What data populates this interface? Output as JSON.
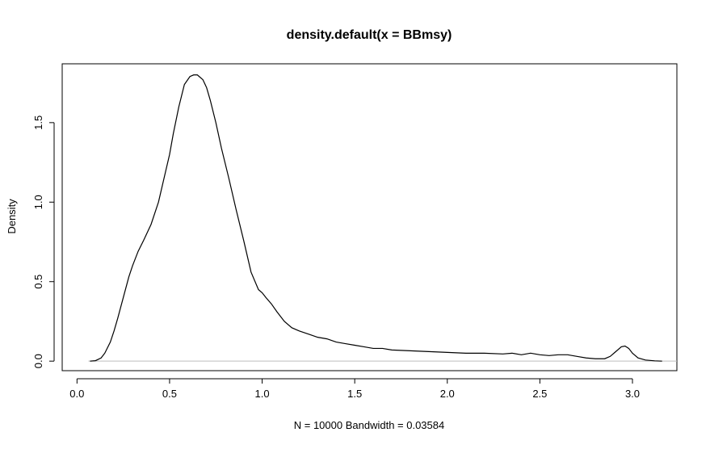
{
  "chart_data": {
    "type": "line",
    "title": "density.default(x = BBmsy)",
    "xlabel": "N = 10000   Bandwidth = 0.03584",
    "ylabel": "Density",
    "xlim": [
      -0.08,
      3.24
    ],
    "ylim": [
      -0.06,
      1.87
    ],
    "x_ticks": [
      0.0,
      0.5,
      1.0,
      1.5,
      2.0,
      2.5,
      3.0
    ],
    "x_tick_labels": [
      "0.0",
      "0.5",
      "1.0",
      "1.5",
      "2.0",
      "2.5",
      "3.0"
    ],
    "y_ticks": [
      0.0,
      0.5,
      1.0,
      1.5
    ],
    "y_tick_labels": [
      "0.0",
      "0.5",
      "1.0",
      "1.5"
    ],
    "zero_baseline": true,
    "zero_baseline_color": "#bebebe",
    "series": [
      {
        "color": "#000000",
        "x": [
          0.07,
          0.1,
          0.13,
          0.15,
          0.18,
          0.2,
          0.22,
          0.25,
          0.28,
          0.3,
          0.33,
          0.36,
          0.4,
          0.44,
          0.48,
          0.5,
          0.52,
          0.55,
          0.58,
          0.61,
          0.63,
          0.65,
          0.66,
          0.68,
          0.7,
          0.72,
          0.75,
          0.78,
          0.82,
          0.86,
          0.9,
          0.94,
          0.98,
          1.0,
          1.02,
          1.05,
          1.08,
          1.12,
          1.16,
          1.2,
          1.25,
          1.3,
          1.35,
          1.4,
          1.45,
          1.5,
          1.55,
          1.6,
          1.65,
          1.7,
          1.8,
          1.9,
          2.0,
          2.1,
          2.2,
          2.3,
          2.35,
          2.4,
          2.45,
          2.5,
          2.55,
          2.6,
          2.65,
          2.7,
          2.75,
          2.8,
          2.85,
          2.88,
          2.91,
          2.94,
          2.96,
          2.98,
          3.0,
          3.03,
          3.07,
          3.12,
          3.16
        ],
        "y": [
          0.0,
          0.003,
          0.02,
          0.05,
          0.12,
          0.19,
          0.27,
          0.4,
          0.53,
          0.6,
          0.69,
          0.76,
          0.86,
          1.0,
          1.2,
          1.3,
          1.43,
          1.6,
          1.74,
          1.79,
          1.8,
          1.8,
          1.79,
          1.77,
          1.72,
          1.64,
          1.5,
          1.34,
          1.15,
          0.95,
          0.76,
          0.56,
          0.45,
          0.43,
          0.4,
          0.36,
          0.31,
          0.25,
          0.21,
          0.19,
          0.17,
          0.15,
          0.14,
          0.12,
          0.11,
          0.1,
          0.09,
          0.08,
          0.08,
          0.07,
          0.065,
          0.06,
          0.055,
          0.05,
          0.05,
          0.045,
          0.05,
          0.04,
          0.05,
          0.04,
          0.035,
          0.04,
          0.04,
          0.03,
          0.02,
          0.015,
          0.015,
          0.03,
          0.06,
          0.09,
          0.095,
          0.08,
          0.05,
          0.02,
          0.007,
          0.002,
          0.0
        ]
      }
    ]
  }
}
